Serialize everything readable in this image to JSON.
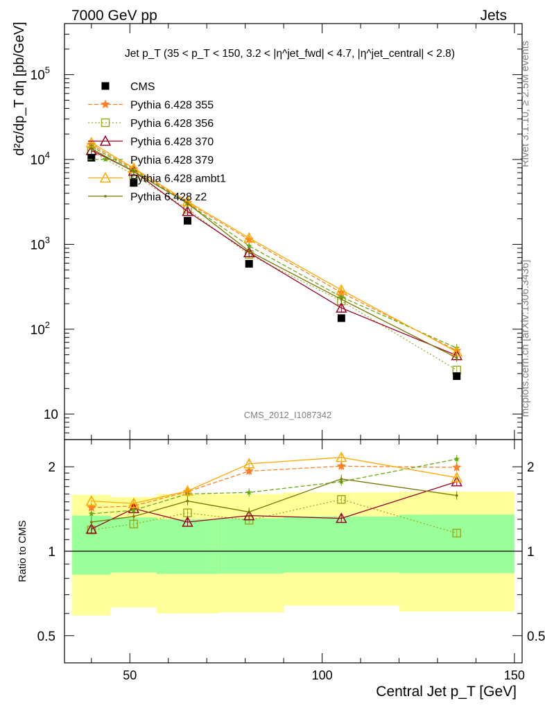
{
  "header": {
    "energy_label": "7000 GeV pp",
    "process_label": "Jets"
  },
  "side_labels": {
    "rivet": "Rivet 3.1.10, ≥ 2.5M events",
    "source": "mcplots.cern.ch [arXiv:1306.3436]"
  },
  "chart_data": [
    {
      "type": "line",
      "title": "Jet p_T (35 < p_T < 150, 3.2 < |η^jet_fwd| < 4.7, |η^jet_central| < 2.8)",
      "watermark": "CMS_2012_I1087342",
      "ylabel": "d²σ/dp_T dη [pb/GeV]",
      "yscale": "log",
      "ylim": [
        5,
        400000
      ],
      "xlim": [
        33,
        152
      ],
      "xticks": [
        50,
        100,
        150
      ],
      "yticks": [
        {
          "value": 10,
          "label": "10"
        },
        {
          "value": 100,
          "label": "10²"
        },
        {
          "value": 1000,
          "label": "10³"
        },
        {
          "value": 10000,
          "label": "10⁴"
        },
        {
          "value": 100000,
          "label": "10⁵"
        }
      ],
      "legend_position": "top-left",
      "data": {
        "name": "CMS",
        "color": "#000000",
        "x": [
          40,
          51,
          65,
          81,
          105,
          135
        ],
        "xerr_low": [
          5,
          6,
          8,
          9,
          15,
          15
        ],
        "xerr_high": [
          5,
          6,
          8,
          9,
          15,
          15
        ],
        "y": [
          10500,
          5300,
          1900,
          590,
          135,
          28
        ]
      },
      "series": [
        {
          "name": "Pythia 6.428 355",
          "color": "#ff7f27",
          "dash": "6,3",
          "marker": "star",
          "y": [
            15000,
            7700,
            3100,
            1140,
            270,
            56
          ]
        },
        {
          "name": "Pythia 6.428 356",
          "color": "#99aa22",
          "dash": "2,3",
          "marker": "open-square",
          "y": [
            12500,
            6600,
            2600,
            760,
            215,
            33
          ]
        },
        {
          "name": "Pythia 6.428 370",
          "color": "#990022",
          "dash": "",
          "marker": "open-triangle",
          "y": [
            12800,
            7300,
            2450,
            800,
            178,
            49
          ]
        },
        {
          "name": "Pythia 6.428 379",
          "color": "#66aa11",
          "dash": "6,3",
          "marker": "star-small",
          "y": [
            14300,
            7450,
            3050,
            960,
            240,
            60
          ]
        },
        {
          "name": "Pythia 6.428 ambt1",
          "color": "#ffaa00",
          "dash": "",
          "marker": "open-triangle",
          "y": [
            15800,
            7900,
            3200,
            1190,
            290,
            54
          ]
        },
        {
          "name": "Pythia 6.428 z2",
          "color": "#777700",
          "dash": "",
          "marker": "dot",
          "y": [
            13400,
            7200,
            3050,
            830,
            225,
            46
          ]
        }
      ]
    },
    {
      "type": "line",
      "ylabel": "Ratio to CMS",
      "xlabel": "Central Jet p_T [GeV]",
      "yscale": "log",
      "ylim": [
        0.4,
        2.5
      ],
      "xlim": [
        33,
        152
      ],
      "xticks": [
        50,
        100,
        150
      ],
      "yticks": [
        {
          "value": 0.5,
          "label": "0.5"
        },
        {
          "value": 1,
          "label": "1"
        },
        {
          "value": 2,
          "label": "2"
        }
      ],
      "bands": {
        "bins": [
          [
            35,
            45
          ],
          [
            45,
            57
          ],
          [
            57,
            73
          ],
          [
            73,
            90
          ],
          [
            90,
            120
          ],
          [
            120,
            150
          ]
        ],
        "stat_low": [
          0.825,
          0.84,
          0.83,
          0.832,
          0.84,
          0.835
        ],
        "stat_high": [
          1.34,
          1.32,
          1.3,
          1.31,
          1.33,
          1.35
        ],
        "total_low": [
          0.59,
          0.63,
          0.6,
          0.605,
          0.64,
          0.61
        ],
        "total_high": [
          1.59,
          1.56,
          1.6,
          1.6,
          1.62,
          1.63
        ],
        "stat_color": "#99ff99",
        "total_color": "#ffff99"
      },
      "series": [
        {
          "name": "Pythia 6.428 355",
          "color": "#ff7f27",
          "dash": "6,3",
          "marker": "star",
          "y": [
            1.43,
            1.45,
            1.63,
            1.93,
            2.01,
            1.99
          ]
        },
        {
          "name": "Pythia 6.428 356",
          "color": "#99aa22",
          "dash": "2,3",
          "marker": "open-square",
          "y": [
            1.19,
            1.25,
            1.37,
            1.29,
            1.53,
            1.16
          ]
        },
        {
          "name": "Pythia 6.428 370",
          "color": "#990022",
          "dash": "",
          "marker": "open-triangle",
          "y": [
            1.2,
            1.42,
            1.27,
            1.34,
            1.31,
            1.77
          ]
        },
        {
          "name": "Pythia 6.428 379",
          "color": "#66aa11",
          "dash": "6,3",
          "marker": "star-small",
          "y": [
            1.36,
            1.4,
            1.6,
            1.62,
            1.77,
            2.13
          ]
        },
        {
          "name": "Pythia 6.428 ambt1",
          "color": "#ffaa00",
          "dash": "",
          "marker": "open-triangle",
          "y": [
            1.51,
            1.48,
            1.64,
            2.05,
            2.16,
            1.83
          ]
        },
        {
          "name": "Pythia 6.428 z2",
          "color": "#777700",
          "dash": "",
          "marker": "dot",
          "y": [
            1.27,
            1.33,
            1.51,
            1.38,
            1.81,
            1.58
          ]
        }
      ]
    }
  ]
}
